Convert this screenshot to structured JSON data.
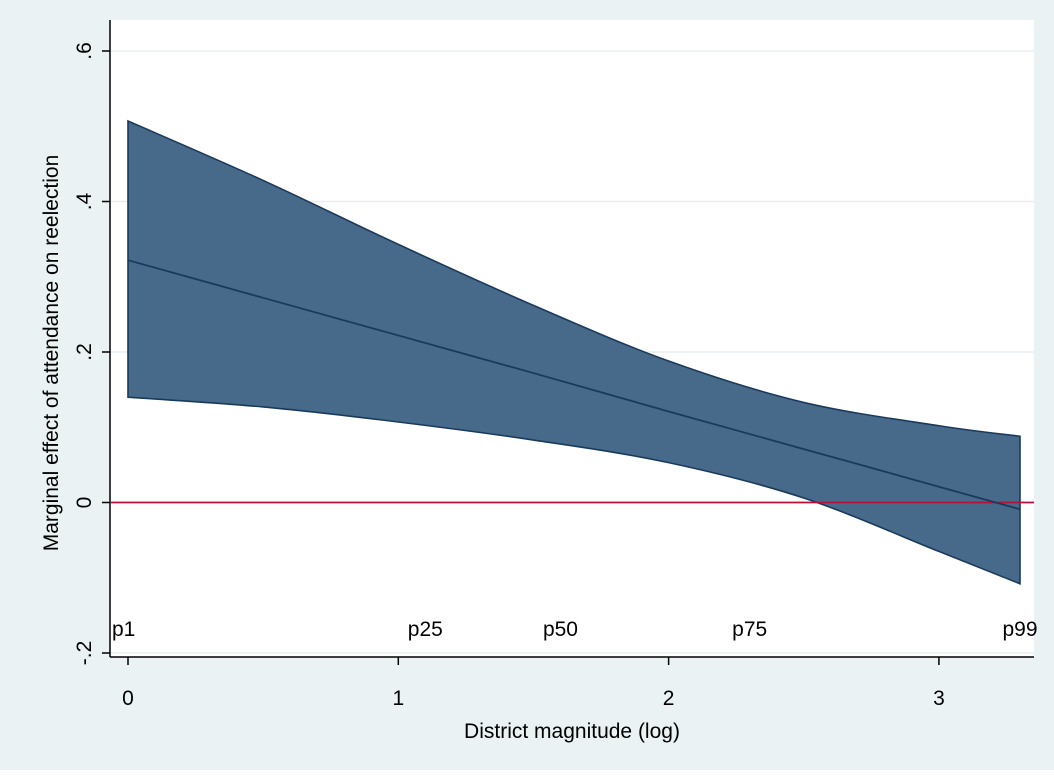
{
  "chart_data": {
    "type": "line",
    "title": "",
    "xlabel": "District magnitude (log)",
    "ylabel": "Marginal effect of attendance on reelection",
    "xlim": [
      0,
      3.3
    ],
    "ylim": [
      -0.2,
      0.6
    ],
    "x_ticks": [
      {
        "value": 0,
        "label": "0"
      },
      {
        "value": 1,
        "label": "1"
      },
      {
        "value": 2,
        "label": "2"
      },
      {
        "value": 3,
        "label": "3"
      }
    ],
    "y_ticks": [
      {
        "value": -0.2,
        "label": "-.2"
      },
      {
        "value": 0,
        "label": "0"
      },
      {
        "value": 0.2,
        "label": ".2"
      },
      {
        "value": 0.4,
        "label": ".4"
      },
      {
        "value": 0.6,
        "label": ".6"
      }
    ],
    "grid": true,
    "reference_line": {
      "y": 0,
      "color": "#b5123b"
    },
    "series": [
      {
        "x": [
          0,
          0.5,
          1,
          1.5,
          2,
          2.5,
          3,
          3.3
        ],
        "estimate": [
          0.322,
          0.272,
          0.222,
          0.172,
          0.121,
          0.071,
          0.021,
          -0.009
        ],
        "upper": [
          0.507,
          0.428,
          0.343,
          0.262,
          0.188,
          0.133,
          0.102,
          0.088
        ],
        "lower": [
          0.14,
          0.127,
          0.107,
          0.083,
          0.053,
          0.006,
          -0.065,
          -0.108
        ]
      }
    ],
    "percentile_annotations": [
      {
        "label": "p1",
        "x": 0.0
      },
      {
        "label": "p25",
        "x": 1.1
      },
      {
        "label": "p50",
        "x": 1.6
      },
      {
        "label": "p75",
        "x": 2.3
      },
      {
        "label": "p99",
        "x": 3.3
      }
    ],
    "annotation_y": -0.168,
    "colors": {
      "background": "#eaf2f3",
      "plot_area": "#ffffff",
      "band_fill": "#476a8a",
      "band_edge": "#1a3a5c",
      "line": "#1a3a5c",
      "grid": "#e8eef0",
      "zero_line": "#b5123b"
    }
  }
}
